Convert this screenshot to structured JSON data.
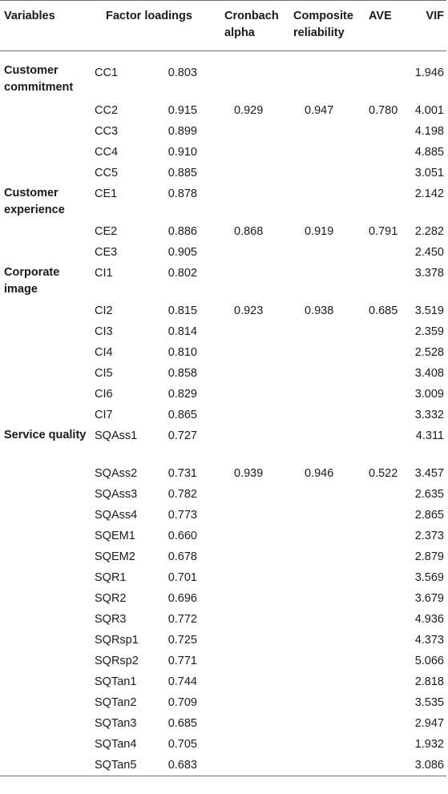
{
  "headers": {
    "variables": "Variables",
    "factor_loadings": "Factor loadings",
    "cronbach": "Cronbach alpha",
    "composite": "Composite reliability",
    "ave": "AVE",
    "vif": "VIF"
  },
  "groups": [
    {
      "name": "Customer commitment",
      "cronbach": "0.929",
      "composite": "0.947",
      "ave": "0.780",
      "rows": [
        {
          "item": "CC1",
          "loading": "0.803",
          "vif": "1.946"
        },
        {
          "item": "CC2",
          "loading": "0.915",
          "vif": "4.001"
        },
        {
          "item": "CC3",
          "loading": "0.899",
          "vif": "4.198"
        },
        {
          "item": "CC4",
          "loading": "0.910",
          "vif": "4.885"
        },
        {
          "item": "CC5",
          "loading": "0.885",
          "vif": "3.051"
        }
      ]
    },
    {
      "name": "Customer experience",
      "cronbach": "0.868",
      "composite": "0.919",
      "ave": "0.791",
      "rows": [
        {
          "item": "CE1",
          "loading": "0.878",
          "vif": "2.142"
        },
        {
          "item": "CE2",
          "loading": "0.886",
          "vif": "2.282"
        },
        {
          "item": "CE3",
          "loading": "0.905",
          "vif": "2.450"
        }
      ]
    },
    {
      "name": "Corporate image",
      "cronbach": "0.923",
      "composite": "0.938",
      "ave": "0.685",
      "rows": [
        {
          "item": "CI1",
          "loading": "0.802",
          "vif": "3.378"
        },
        {
          "item": "CI2",
          "loading": "0.815",
          "vif": "3.519"
        },
        {
          "item": "CI3",
          "loading": "0.814",
          "vif": "2.359"
        },
        {
          "item": "CI4",
          "loading": "0.810",
          "vif": "2.528"
        },
        {
          "item": "CI5",
          "loading": "0.858",
          "vif": "3.408"
        },
        {
          "item": "CI6",
          "loading": "0.829",
          "vif": "3.009"
        },
        {
          "item": "CI7",
          "loading": "0.865",
          "vif": "3.332"
        }
      ]
    },
    {
      "name": "Service quality",
      "cronbach": "0.939",
      "composite": "0.946",
      "ave": "0.522",
      "rows": [
        {
          "item": "SQAss1",
          "loading": "0.727",
          "vif": "4.311"
        },
        {
          "item": "SQAss2",
          "loading": "0.731",
          "vif": "3.457"
        },
        {
          "item": "SQAss3",
          "loading": "0.782",
          "vif": "2.635"
        },
        {
          "item": "SQAss4",
          "loading": "0.773",
          "vif": "2.865"
        },
        {
          "item": "SQEM1",
          "loading": "0.660",
          "vif": "2.373"
        },
        {
          "item": "SQEM2",
          "loading": "0.678",
          "vif": "2.879"
        },
        {
          "item": "SQR1",
          "loading": "0.701",
          "vif": "3.569"
        },
        {
          "item": "SQR2",
          "loading": "0.696",
          "vif": "3.679"
        },
        {
          "item": "SQR3",
          "loading": "0.772",
          "vif": "4.936"
        },
        {
          "item": "SQRsp1",
          "loading": "0.725",
          "vif": "4.373"
        },
        {
          "item": "SQRsp2",
          "loading": "0.771",
          "vif": "5.066"
        },
        {
          "item": "SQTan1",
          "loading": "0.744",
          "vif": "2.818"
        },
        {
          "item": "SQTan2",
          "loading": "0.709",
          "vif": "3.535"
        },
        {
          "item": "SQTan3",
          "loading": "0.685",
          "vif": "2.947"
        },
        {
          "item": "SQTan4",
          "loading": "0.705",
          "vif": "1.932"
        },
        {
          "item": "SQTan5",
          "loading": "0.683",
          "vif": "3.086"
        }
      ]
    }
  ]
}
